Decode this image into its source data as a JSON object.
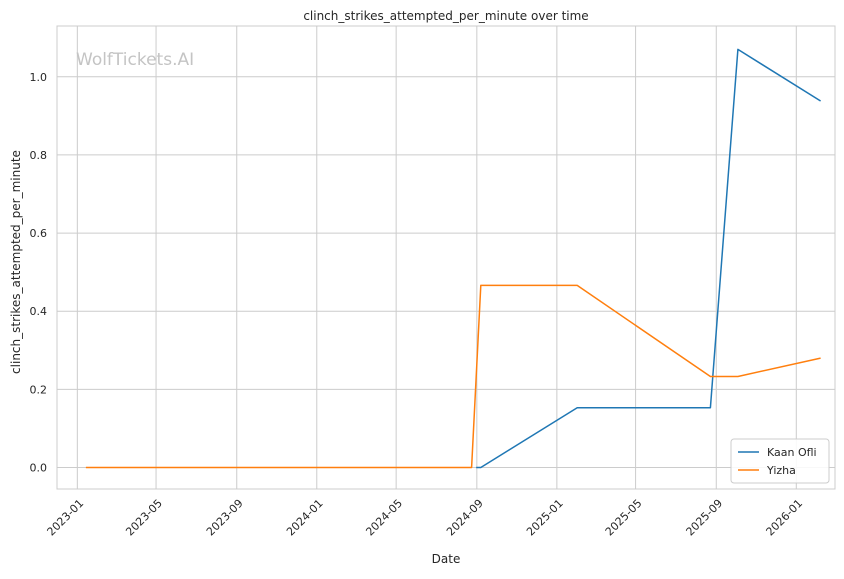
{
  "chart_data": {
    "type": "line",
    "title": "clinch_strikes_attempted_per_minute over time",
    "xlabel": "Date",
    "ylabel": "clinch_strikes_attempted_per_minute",
    "watermark": "WolfTickets.AI",
    "xlim": [
      "2022-12-01",
      "2026-03-01"
    ],
    "ylim": [
      -0.055,
      1.13
    ],
    "x_ticks": [
      "2023-01",
      "2023-05",
      "2023-09",
      "2024-01",
      "2024-05",
      "2024-09",
      "2025-01",
      "2025-05",
      "2025-09",
      "2026-01"
    ],
    "y_ticks": [
      "0.0",
      "0.2",
      "0.4",
      "0.6",
      "0.8",
      "1.0"
    ],
    "grid": true,
    "legend_position": "bottom-right",
    "series": [
      {
        "name": "Kaan Ofli",
        "color": "#1f77b4",
        "points": [
          {
            "x": "2024-08-31",
            "y": 0.0
          },
          {
            "x": "2024-09-07",
            "y": 0.0
          },
          {
            "x": "2025-02-01",
            "y": 0.153
          },
          {
            "x": "2025-08-23",
            "y": 0.153
          },
          {
            "x": "2025-10-04",
            "y": 1.07
          },
          {
            "x": "2026-02-07",
            "y": 0.938
          }
        ]
      },
      {
        "name": "Yizha",
        "color": "#ff7f0e",
        "points": [
          {
            "x": "2023-01-14",
            "y": 0.0
          },
          {
            "x": "2024-08-24",
            "y": 0.0
          },
          {
            "x": "2024-09-07",
            "y": 0.466
          },
          {
            "x": "2025-02-01",
            "y": 0.466
          },
          {
            "x": "2025-08-23",
            "y": 0.233
          },
          {
            "x": "2025-10-04",
            "y": 0.233
          },
          {
            "x": "2026-02-07",
            "y": 0.28
          }
        ]
      }
    ]
  }
}
